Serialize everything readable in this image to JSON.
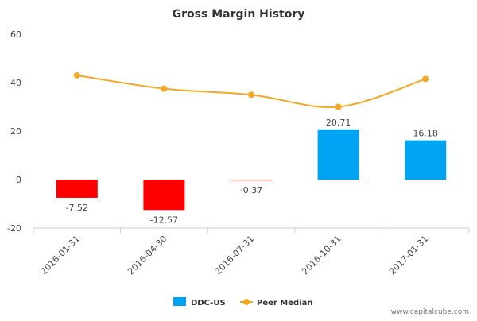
{
  "chart_data": {
    "type": "bar",
    "title": "Gross Margin History",
    "categories": [
      "2016-01-31",
      "2016-04-30",
      "2016-07-31",
      "2016-10-31",
      "2017-01-31"
    ],
    "series": [
      {
        "name": "DDC-US",
        "type": "bar",
        "values": [
          -7.52,
          -12.57,
          -0.37,
          20.71,
          16.18
        ],
        "labels": [
          "-7.52",
          "-12.57",
          "-0.37",
          "20.71",
          "16.18"
        ],
        "color": "#00a2f2",
        "negative_color": "#ff0000"
      },
      {
        "name": "Peer Median",
        "type": "line",
        "values": [
          43,
          37.5,
          35,
          30,
          41.5
        ],
        "color": "#f5a623"
      }
    ],
    "ylim": [
      -20,
      60
    ],
    "yticks": [
      -20,
      0,
      20,
      40,
      60
    ],
    "xlabel": "",
    "ylabel": "",
    "grid": false,
    "legend_position": "bottom"
  },
  "credit": "www.capitalcube.com"
}
